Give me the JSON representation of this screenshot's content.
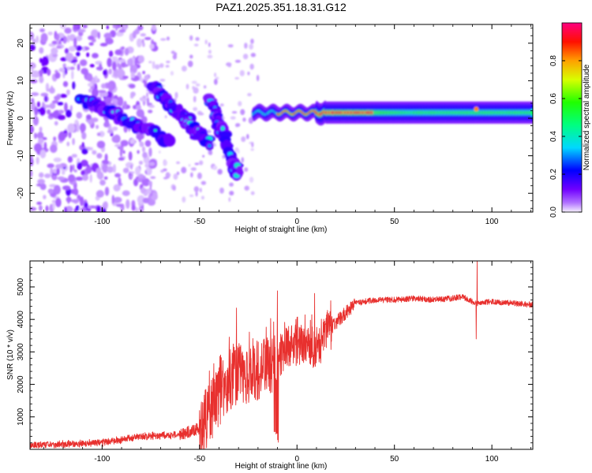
{
  "title": "PAZ1.2025.351.18.31.G12",
  "chart_data": [
    {
      "type": "heatmap",
      "xlabel": "Height of straight line (km)",
      "ylabel": "Frequency (Hz)",
      "xlim": [
        -137,
        121
      ],
      "ylim": [
        -25,
        25
      ],
      "x_ticks": [
        -100,
        -50,
        0,
        50,
        100
      ],
      "y_ticks": [
        -20,
        -10,
        0,
        10,
        20
      ],
      "colorbar": {
        "label": "Normalized spectral amplitude",
        "range": [
          0,
          1
        ],
        "ticks": [
          "0.0",
          "0.2",
          "0.4",
          "0.6",
          "0.8"
        ]
      },
      "features": {
        "scattered_region_km": [
          -137,
          -85
        ],
        "diagonal_streaks": [
          {
            "x_start": -110,
            "x_end": -65,
            "f_start": 5,
            "f_end": -6
          },
          {
            "x_start": -75,
            "x_end": -45,
            "f_start": 9,
            "f_end": -7
          },
          {
            "x_start": -45,
            "x_end": -30,
            "f_start": 5,
            "f_end": -15
          }
        ],
        "band_centre_hz": 1.5,
        "band_start_km": -22,
        "peak_amplitude_span_km": [
          -10,
          40
        ],
        "band_end_km": 121
      }
    },
    {
      "type": "line",
      "xlabel": "Height of straight line (km)",
      "ylabel": "SNR (10 * v/v)",
      "xlim": [
        -137,
        121
      ],
      "ylim": [
        0,
        5800
      ],
      "x_ticks": [
        -100,
        -50,
        0,
        50,
        100
      ],
      "y_ticks": [
        1000,
        2000,
        3000,
        4000,
        5000
      ],
      "series": [
        {
          "name": "SNR",
          "color": "#e8302e",
          "envelope_x": [
            -137,
            -100,
            -80,
            -60,
            -50,
            -45,
            -40,
            -35,
            -30,
            -25,
            -20,
            -15,
            -10,
            -5,
            0,
            5,
            10,
            15,
            20,
            25,
            30,
            40,
            50,
            60,
            70,
            80,
            85,
            90,
            92,
            95,
            100,
            110,
            121
          ],
          "envelope_y": [
            120,
            200,
            400,
            450,
            650,
            1100,
            1600,
            2100,
            2300,
            2300,
            2400,
            2600,
            2800,
            3200,
            3200,
            3300,
            3100,
            3500,
            3900,
            4200,
            4500,
            4600,
            4600,
            4650,
            4600,
            4650,
            4700,
            4550,
            4500,
            4500,
            4550,
            4500,
            4450
          ],
          "spikes": [
            {
              "x": -31,
              "y": 4350
            },
            {
              "x": -10,
              "y": 4880
            },
            {
              "x": 9,
              "y": 4800
            },
            {
              "x": 92.5,
              "y": 5780
            },
            {
              "x": 92,
              "y": 3400
            }
          ]
        }
      ]
    }
  ]
}
